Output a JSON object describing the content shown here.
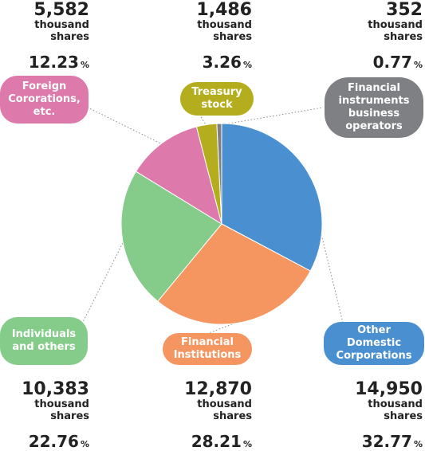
{
  "chart_data": {
    "type": "pie",
    "start": "top",
    "direction": "clockwise",
    "slices": [
      {
        "label": "Other Domestic Corporations",
        "shares": "14,950",
        "unit": "thousand shares",
        "percent_text": "32.77",
        "percent_sign": "%",
        "value": 32.77,
        "color": "#4a8fd0"
      },
      {
        "label": "Financial Institutions",
        "shares": "12,870",
        "unit": "thousand shares",
        "percent_text": "28.21",
        "percent_sign": "%",
        "value": 28.21,
        "color": "#f59660"
      },
      {
        "label": "Individuals and others",
        "shares": "10,383",
        "unit": "thousand shares",
        "percent_text": "22.76",
        "percent_sign": "%",
        "value": 22.76,
        "color": "#85cc8a"
      },
      {
        "label": "Foreign Cororations, etc.",
        "shares": "5,582",
        "unit": "thousand shares",
        "percent_text": "12.23",
        "percent_sign": "%",
        "value": 12.23,
        "color": "#dd7aab"
      },
      {
        "label": "Treasury stock",
        "shares": "1,486",
        "unit": "thousand shares",
        "percent_text": "3.26",
        "percent_sign": "%",
        "value": 3.26,
        "color": "#b4ad1e"
      },
      {
        "label": "Financial instruments business operators",
        "shares": "352",
        "unit": "thousand shares",
        "percent_text": "0.77",
        "percent_sign": "%",
        "value": 0.77,
        "color": "#7f8084"
      }
    ]
  }
}
